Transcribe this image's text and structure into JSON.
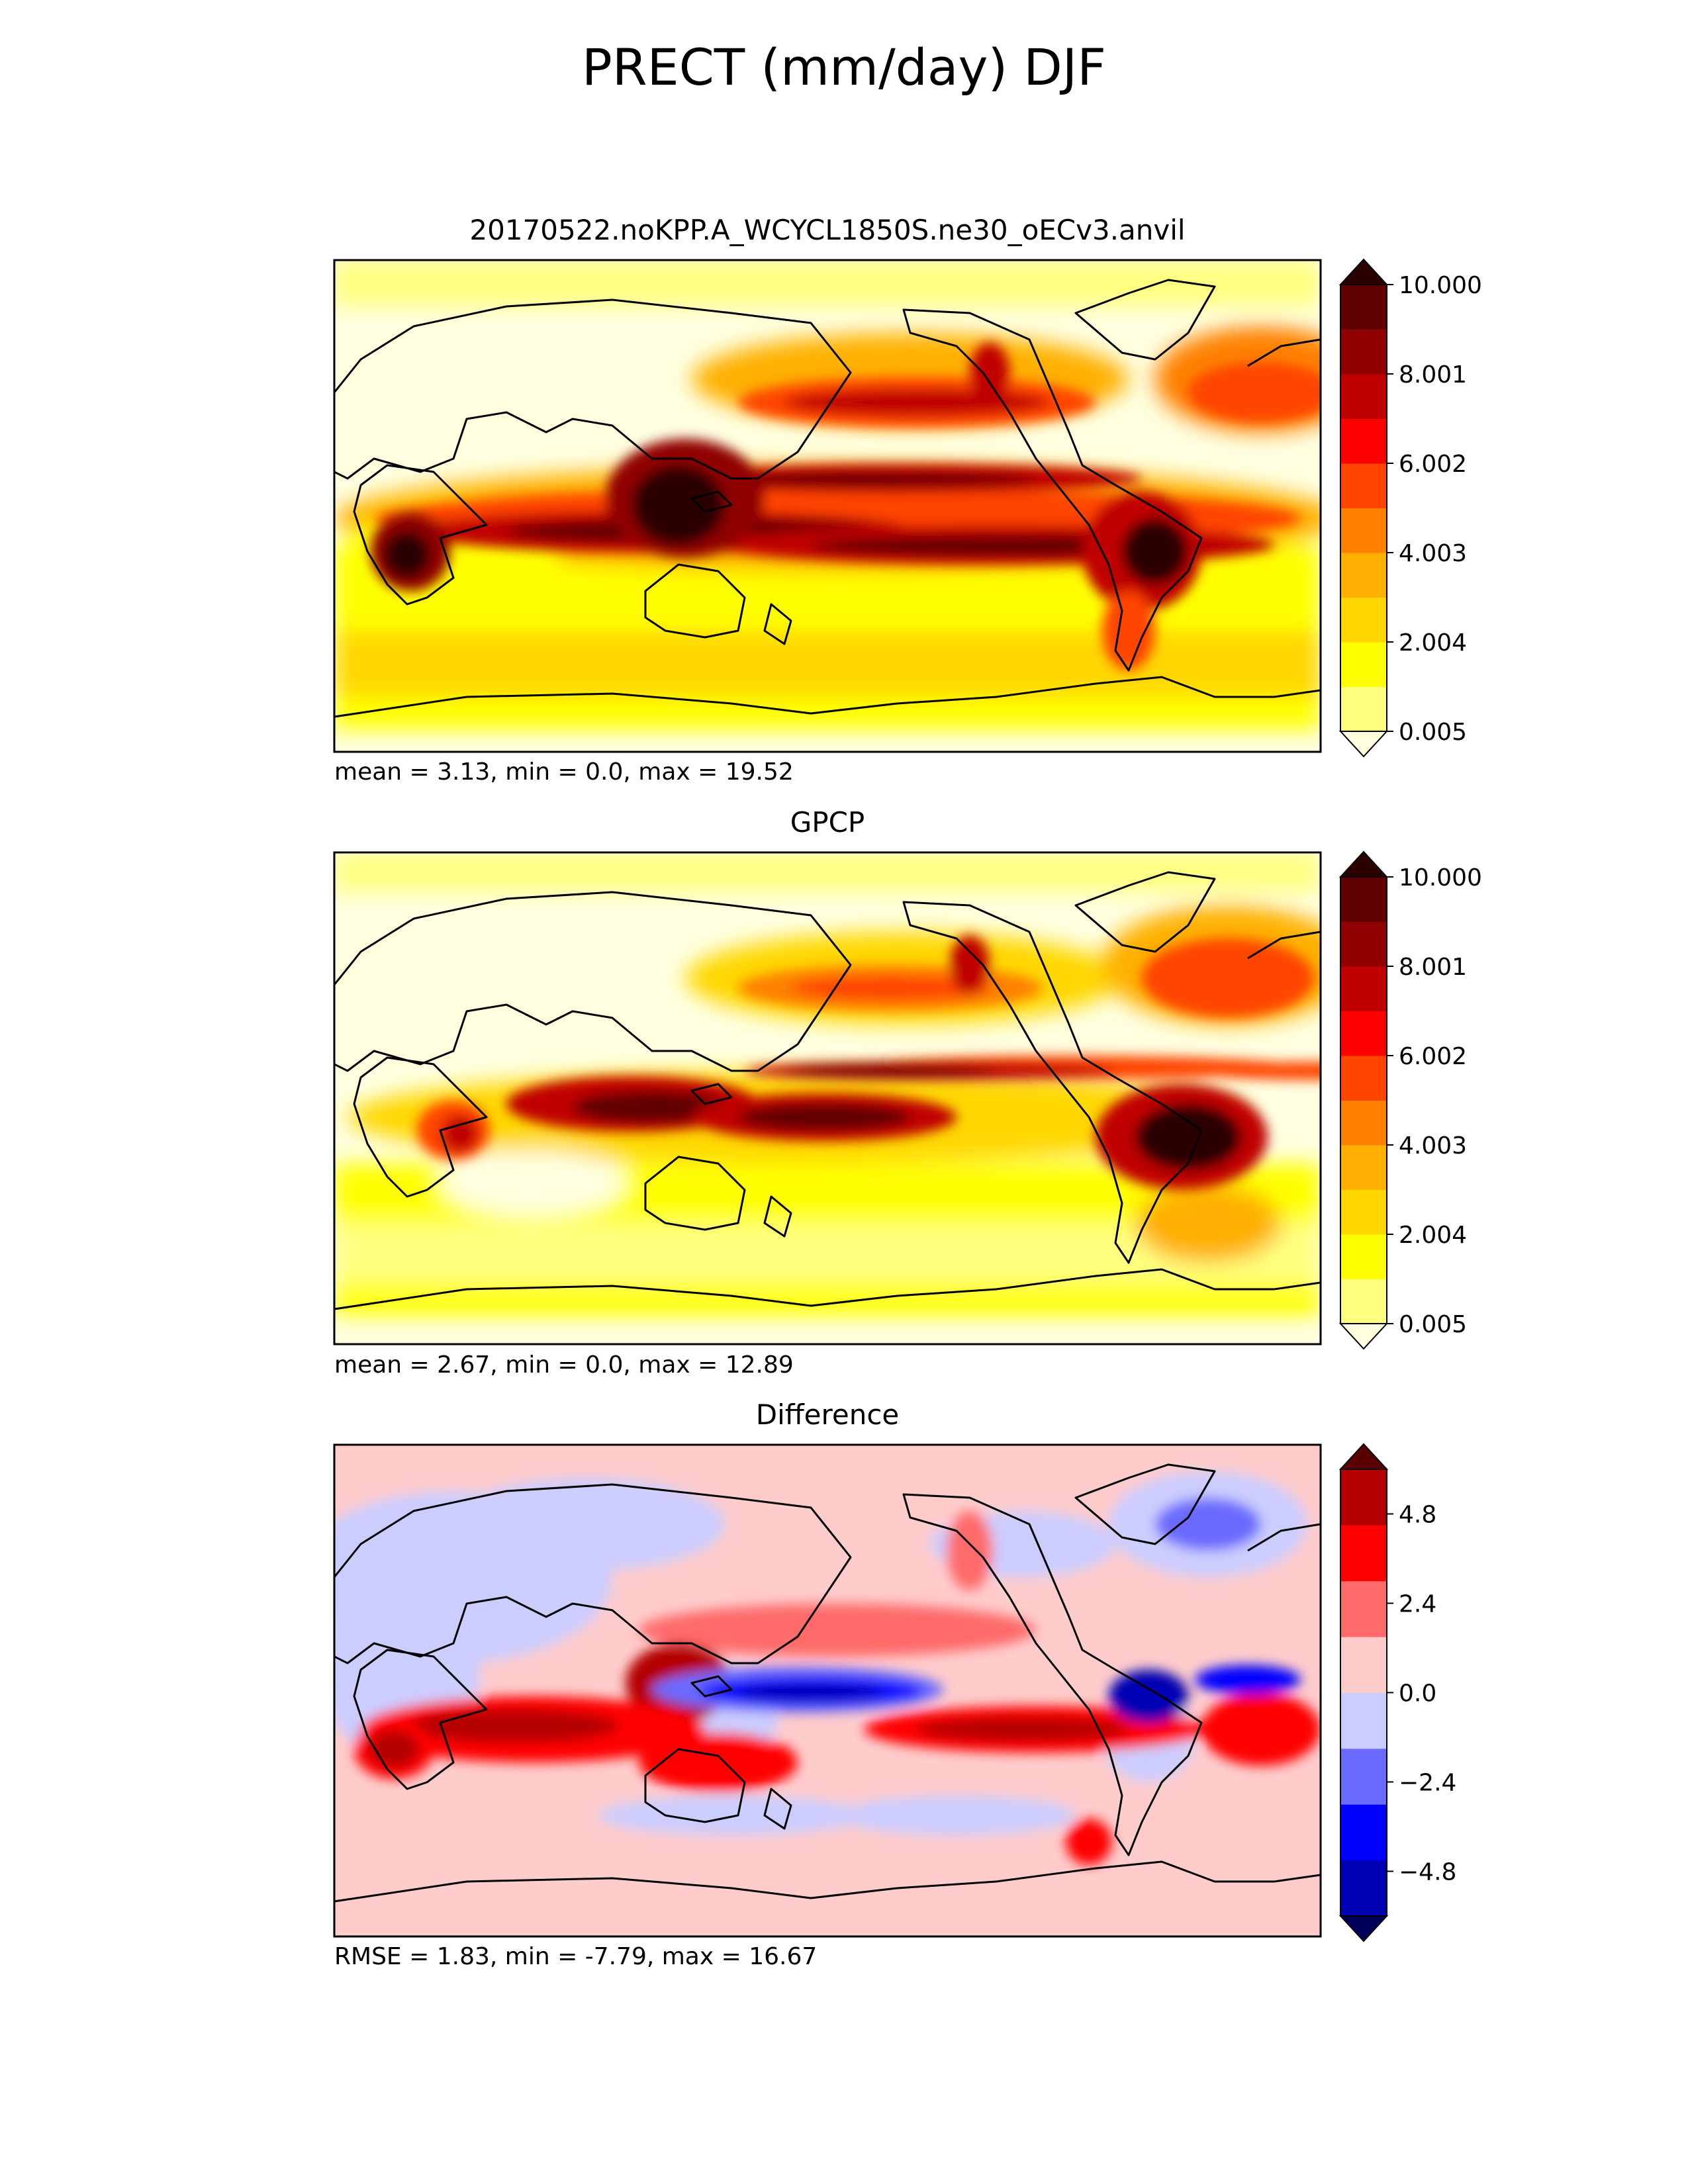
{
  "suptitle": "PRECT (mm/day) DJF",
  "chart_data": [
    {
      "type": "heatmap",
      "title": "20170522.noKPP.A_WCYCL1850S.ne30_oECv3.anvil",
      "stats": "mean = 3.13, min = 0.0, max = 19.52",
      "colorbar": {
        "ticks": [
          "10.000",
          "8.001",
          "6.002",
          "4.003",
          "2.004",
          "0.005"
        ],
        "tick_values": [
          10.0,
          8.001,
          6.002,
          4.003,
          2.004,
          0.005
        ],
        "range": [
          0.005,
          10.0
        ],
        "extend": "both",
        "colors": [
          "#ffffe0",
          "#ffff80",
          "#ffff00",
          "#ffd700",
          "#ffb000",
          "#ff8000",
          "#ff4500",
          "#ff0000",
          "#c00000",
          "#900000",
          "#600000",
          "#2b0000"
        ]
      }
    },
    {
      "type": "heatmap",
      "title": "GPCP",
      "stats": "mean = 2.67, min = 0.0, max = 12.89",
      "colorbar": {
        "ticks": [
          "10.000",
          "8.001",
          "6.002",
          "4.003",
          "2.004",
          "0.005"
        ],
        "tick_values": [
          10.0,
          8.001,
          6.002,
          4.003,
          2.004,
          0.005
        ],
        "range": [
          0.005,
          10.0
        ],
        "extend": "both",
        "colors": [
          "#ffffe0",
          "#ffff80",
          "#ffff00",
          "#ffd700",
          "#ffb000",
          "#ff8000",
          "#ff4500",
          "#ff0000",
          "#c00000",
          "#900000",
          "#600000",
          "#2b0000"
        ]
      }
    },
    {
      "type": "heatmap",
      "title": "Difference",
      "stats": "RMSE = 1.83, min = -7.79, max = 16.67",
      "colorbar": {
        "ticks": [
          "4.8",
          "2.4",
          "0.0",
          "−2.4",
          "−4.8"
        ],
        "tick_values": [
          4.8,
          2.4,
          0.0,
          -2.4,
          -4.8
        ],
        "range": [
          -6.0,
          6.0
        ],
        "extend": "both",
        "colors": [
          "#00005a",
          "#0000b4",
          "#0000ff",
          "#6a6aff",
          "#cccdff",
          "#ffcccc",
          "#ff6a6a",
          "#ff0000",
          "#b40000",
          "#5a0000"
        ]
      }
    }
  ]
}
